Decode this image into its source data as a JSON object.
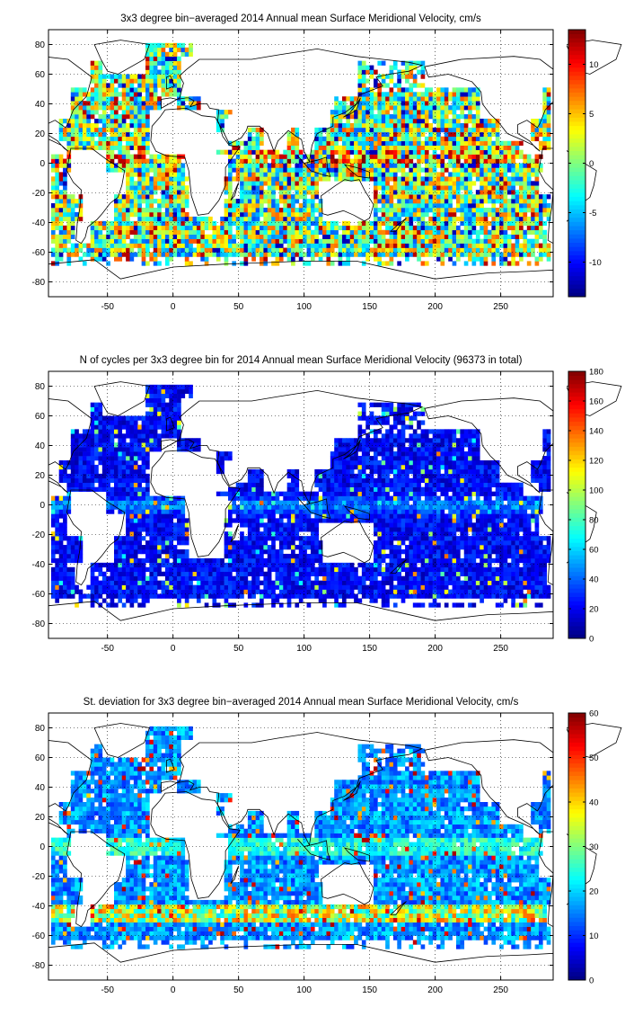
{
  "chart_data": [
    {
      "type": "heatmap",
      "id": "mean",
      "title": "3x3 degree bin−averaged 2014 Annual mean Surface Meridional Velocity, cm/s",
      "xlim": [
        -95,
        290
      ],
      "ylim": [
        -90,
        90
      ],
      "xticks": [
        -50,
        0,
        50,
        100,
        150,
        200,
        250
      ],
      "yticks": [
        -80,
        -60,
        -40,
        -20,
        0,
        20,
        40,
        60,
        80
      ],
      "colorbar": {
        "min": -13.5,
        "max": 13.5,
        "ticks": [
          -10,
          -5,
          0,
          5,
          10
        ]
      },
      "colormap": "jet",
      "grid": true,
      "bin_size_deg": 3
    },
    {
      "type": "heatmap",
      "id": "count",
      "title": "N of cycles per 3x3 degree bin for 2014 Annual mean Surface Meridional Velocity (96373 in total)",
      "xlim": [
        -95,
        290
      ],
      "ylim": [
        -90,
        90
      ],
      "xticks": [
        -50,
        0,
        50,
        100,
        150,
        200,
        250
      ],
      "yticks": [
        -80,
        -60,
        -40,
        -20,
        0,
        20,
        40,
        60,
        80
      ],
      "colorbar": {
        "min": 0,
        "max": 180,
        "ticks": [
          0,
          20,
          40,
          60,
          80,
          100,
          120,
          140,
          160,
          180
        ]
      },
      "colormap": "jet",
      "grid": true,
      "bin_size_deg": 3
    },
    {
      "type": "heatmap",
      "id": "std",
      "title": "St. deviation for 3x3 degree bin−averaged 2014 Annual mean Surface Meridional Velocity, cm/s",
      "xlim": [
        -95,
        290
      ],
      "ylim": [
        -90,
        90
      ],
      "xticks": [
        -50,
        0,
        50,
        100,
        150,
        200,
        250
      ],
      "yticks": [
        -80,
        -60,
        -40,
        -20,
        0,
        20,
        40,
        60,
        80
      ],
      "colorbar": {
        "min": 0,
        "max": 60,
        "ticks": [
          0,
          10,
          20,
          30,
          40,
          50,
          60
        ]
      },
      "colormap": "jet",
      "grid": true,
      "bin_size_deg": 3
    }
  ]
}
